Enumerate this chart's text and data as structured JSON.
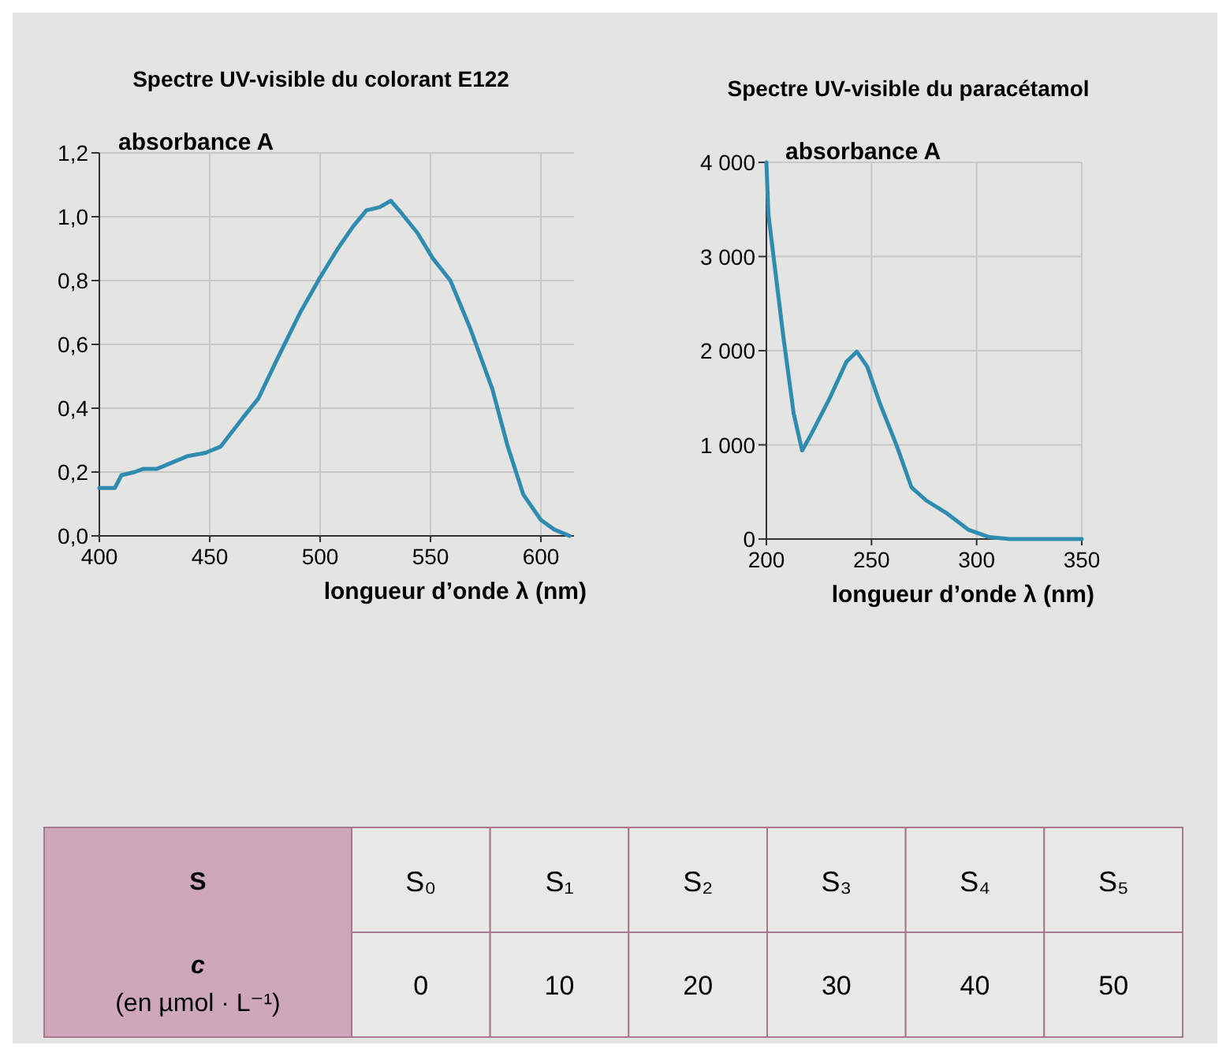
{
  "chart_data": [
    {
      "type": "line",
      "title": "Spectre UV-visible du colorant E122",
      "xlabel": "longueur d’onde λ (nm)",
      "ylabel": "absorbance A",
      "grid": true,
      "xlim": [
        400,
        615
      ],
      "xticks": [
        400,
        450,
        500,
        550,
        600
      ],
      "ylim": [
        0,
        1.2
      ],
      "yticks": [
        {
          "value": 0,
          "label": "0,0"
        },
        {
          "value": 0.2,
          "label": "0,2"
        },
        {
          "value": 0.4,
          "label": "0,4"
        },
        {
          "value": 0.6,
          "label": "0,6"
        },
        {
          "value": 0.8,
          "label": "0,8"
        },
        {
          "value": 1.0,
          "label": "1,0"
        },
        {
          "value": 1.2,
          "label": "1,2"
        }
      ],
      "series": [
        {
          "color": "#2f8cb0",
          "x": [
            400,
            404,
            407,
            410,
            416,
            420,
            426,
            433,
            440,
            448,
            455,
            465,
            472,
            481,
            491,
            500,
            508,
            515,
            521,
            527,
            532,
            537,
            544,
            551,
            559,
            568,
            578,
            585,
            592,
            600,
            606,
            613
          ],
          "values": [
            0.15,
            0.15,
            0.15,
            0.19,
            0.2,
            0.21,
            0.21,
            0.23,
            0.25,
            0.26,
            0.28,
            0.37,
            0.43,
            0.56,
            0.7,
            0.81,
            0.9,
            0.97,
            1.02,
            1.03,
            1.05,
            1.01,
            0.95,
            0.87,
            0.8,
            0.65,
            0.46,
            0.28,
            0.13,
            0.05,
            0.02,
            0.0
          ]
        }
      ]
    },
    {
      "type": "line",
      "title": "Spectre UV-visible du paracétamol",
      "xlabel": "longueur d’onde λ (nm)",
      "ylabel": "absorbance A",
      "grid": true,
      "xlim": [
        200,
        350
      ],
      "xticks": [
        200,
        250,
        300,
        350
      ],
      "ylim": [
        0,
        4000
      ],
      "yticks": [
        0,
        {
          "value": 1000,
          "label": "1 000"
        },
        {
          "value": 2000,
          "label": "2 000"
        },
        {
          "value": 3000,
          "label": "3 000"
        },
        {
          "value": 4000,
          "label": "4 000"
        }
      ],
      "series": [
        {
          "color": "#2f8cb0",
          "x": [
            200,
            201,
            204,
            208,
            213,
            217,
            221,
            230,
            238,
            243,
            248,
            254,
            262,
            269,
            276,
            286,
            296,
            306,
            316,
            350
          ],
          "values": [
            4000,
            3440,
            2890,
            2160,
            1330,
            940,
            1100,
            1490,
            1880,
            1990,
            1830,
            1440,
            990,
            550,
            410,
            270,
            100,
            20,
            0,
            0
          ]
        }
      ]
    },
    {
      "type": "other",
      "xlabel": "S",
      "ylabel": "c (en µmol · L⁻¹)",
      "categories": [
        "S₀",
        "S₁",
        "S₂",
        "S₃",
        "S₄",
        "S₅"
      ],
      "values": [
        0,
        10,
        20,
        30,
        40,
        50
      ],
      "data_labels": true
    }
  ]
}
